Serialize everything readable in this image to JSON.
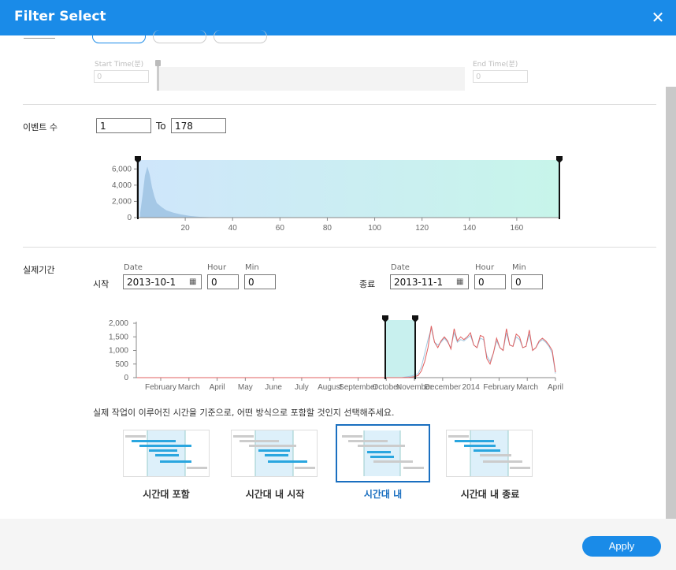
{
  "dialog": {
    "title": "Filter Select",
    "close_icon": "close-icon"
  },
  "time_section": {
    "start_label": "Start Time(분)",
    "end_label": "End Time(분)",
    "start_value": "0",
    "end_value": "0"
  },
  "event_count": {
    "label": "이벤트 수",
    "from_value": "1",
    "to_label": "To",
    "to_value": "178"
  },
  "event_chart_data": {
    "type": "area",
    "x_ticks": [
      "20",
      "40",
      "60",
      "80",
      "100",
      "120",
      "140",
      "160"
    ],
    "y_ticks": [
      "6,000",
      "4,000",
      "2,000",
      "0"
    ],
    "x_range": [
      0,
      178
    ],
    "y_range": [
      0,
      7000
    ],
    "selection": [
      1,
      178
    ],
    "points": [
      [
        1,
        600
      ],
      [
        2,
        2800
      ],
      [
        3,
        5200
      ],
      [
        4,
        6300
      ],
      [
        5,
        5300
      ],
      [
        6,
        3700
      ],
      [
        7,
        2600
      ],
      [
        8,
        1800
      ],
      [
        10,
        1300
      ],
      [
        12,
        900
      ],
      [
        15,
        600
      ],
      [
        18,
        400
      ],
      [
        22,
        200
      ],
      [
        26,
        100
      ],
      [
        30,
        50
      ],
      [
        40,
        20
      ],
      [
        60,
        5
      ],
      [
        178,
        0
      ]
    ]
  },
  "period": {
    "label": "실제기간",
    "start_label": "시작",
    "end_label": "종료",
    "date_label": "Date",
    "hour_label": "Hour",
    "min_label": "Min",
    "start_date": "2013-10-1",
    "start_hour": "0",
    "start_min": "0",
    "end_date": "2013-11-1",
    "end_hour": "0",
    "end_min": "0",
    "calendar_icon": "calendar-icon"
  },
  "chart_data": {
    "type": "line",
    "y_ticks": [
      "2,000",
      "1,500",
      "1,000",
      "500",
      "0"
    ],
    "y_range": [
      0,
      2000
    ],
    "x_labels": [
      "February",
      "March",
      "April",
      "May",
      "June",
      "July",
      "August",
      "September",
      "October",
      "November",
      "December",
      "2014",
      "February",
      "March",
      "April"
    ],
    "selection": [
      "October",
      "November"
    ],
    "series": [
      {
        "color": "#e06060",
        "values": [
          0,
          0,
          0,
          0,
          0,
          0,
          0,
          0,
          0,
          0,
          0,
          0,
          0,
          0,
          0,
          0,
          0,
          0,
          0,
          0,
          0,
          0,
          0,
          0,
          0,
          0,
          0,
          0,
          0,
          0,
          0,
          0,
          0,
          0,
          0,
          0,
          0,
          0,
          0,
          0,
          0,
          0,
          0,
          0,
          0,
          0,
          0,
          0,
          0,
          0,
          0,
          0,
          0,
          0,
          0,
          0,
          0,
          0,
          0,
          0,
          0,
          0,
          0,
          0,
          0,
          0,
          0,
          0,
          0,
          0,
          0,
          0,
          0,
          0,
          0,
          0,
          0,
          0,
          0,
          0,
          0,
          0,
          5,
          10,
          20,
          40,
          80,
          250,
          600,
          1100,
          1900,
          1300,
          1100,
          1350,
          1500,
          1350,
          1050,
          1800,
          1350,
          1500,
          1400,
          1500,
          1650,
          1200,
          1100,
          1550,
          1500,
          700,
          500,
          900,
          1450,
          1100,
          1000,
          1800,
          1200,
          1150,
          1600,
          1500,
          1100,
          1150,
          1750,
          1000,
          1100,
          1350,
          1450,
          1350,
          1200,
          1000,
          200
        ]
      },
      {
        "color": "#a0c8e0",
        "values": [
          0,
          0,
          0,
          0,
          0,
          0,
          0,
          0,
          0,
          0,
          0,
          0,
          0,
          0,
          0,
          0,
          0,
          0,
          0,
          0,
          0,
          0,
          0,
          0,
          0,
          0,
          0,
          0,
          0,
          0,
          0,
          0,
          0,
          0,
          0,
          0,
          0,
          0,
          0,
          0,
          0,
          0,
          0,
          0,
          0,
          0,
          0,
          0,
          0,
          0,
          0,
          0,
          0,
          0,
          0,
          0,
          0,
          0,
          0,
          0,
          0,
          0,
          0,
          0,
          0,
          0,
          0,
          0,
          0,
          0,
          0,
          0,
          0,
          0,
          0,
          0,
          0,
          0,
          0,
          0,
          0,
          0,
          20,
          40,
          60,
          100,
          150,
          400,
          900,
          1400,
          1800,
          1300,
          1200,
          1300,
          1450,
          1300,
          1100,
          1650,
          1300,
          1400,
          1350,
          1450,
          1550,
          1200,
          1100,
          1450,
          1400,
          800,
          600,
          900,
          1350,
          1100,
          1000,
          1650,
          1200,
          1150,
          1500,
          1400,
          1100,
          1150,
          1600,
          1000,
          1100,
          1300,
          1400,
          1300,
          1150,
          900,
          150
        ]
      }
    ]
  },
  "instruction": "실제 작업이 이루어진 시간을 기준으로, 어떤 방식으로 포함할 것인지 선택해주세요.",
  "options": [
    {
      "label": "시간대 포함"
    },
    {
      "label": "시간대 내 시작"
    },
    {
      "label": "시간대 내"
    },
    {
      "label": "시간대 내 종료"
    }
  ],
  "footer": {
    "apply_label": "Apply"
  }
}
